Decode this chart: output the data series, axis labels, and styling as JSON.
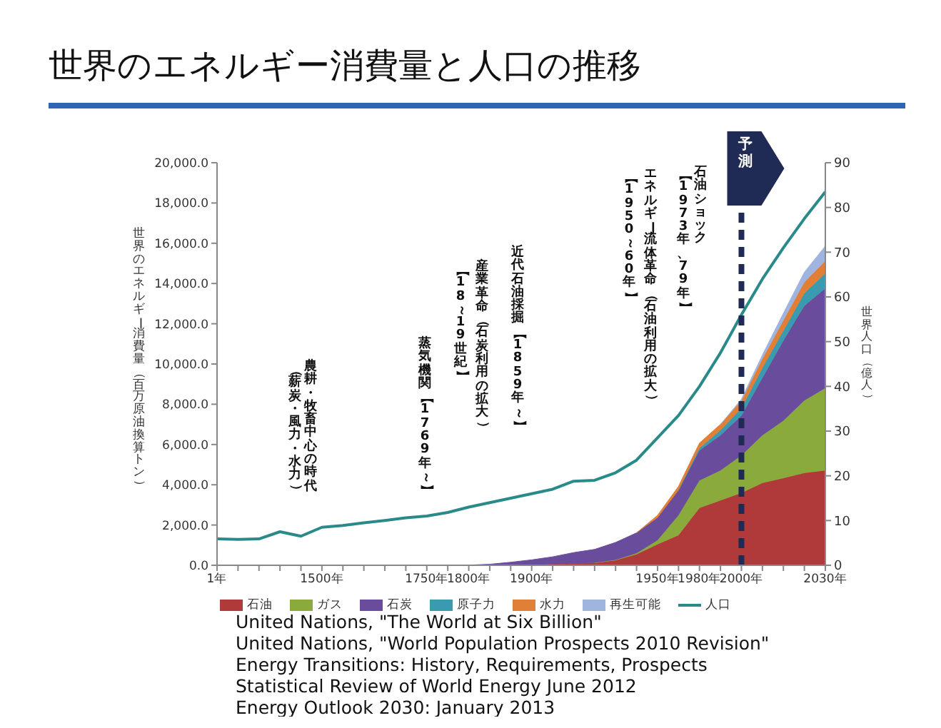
{
  "chart_data": {
    "type": "area",
    "stacked": true,
    "title": "世界のエネルギー消費量と人口の推移",
    "ylabel": "世界のエネルギー消費量（百万原油換算トン）",
    "y2label": "世界人口（億人）",
    "categories": [
      "1年",
      null,
      null,
      null,
      null,
      "1500年",
      null,
      null,
      null,
      null,
      "1750年",
      null,
      "1800年",
      null,
      null,
      "1900年",
      null,
      null,
      null,
      null,
      null,
      "1950年",
      null,
      "1980年",
      null,
      "2000年",
      null,
      null,
      null,
      "2030年"
    ],
    "series": [
      {
        "name": "石油",
        "color": "#b03a3a",
        "values": [
          null,
          null,
          null,
          null,
          null,
          null,
          null,
          null,
          null,
          null,
          null,
          null,
          null,
          null,
          null,
          20,
          50,
          80,
          120,
          245,
          540,
          1040,
          1490,
          2850,
          3220,
          3590,
          4090,
          4330,
          4580,
          4710
        ]
      },
      {
        "name": "ガス",
        "color": "#8aab3c",
        "values": [
          null,
          null,
          null,
          null,
          null,
          null,
          null,
          null,
          null,
          null,
          null,
          null,
          null,
          null,
          null,
          null,
          null,
          null,
          0,
          20,
          50,
          200,
          990,
          1360,
          1490,
          1860,
          2360,
          2850,
          3600,
          4090
        ]
      },
      {
        "name": "石炭",
        "color": "#6a4c9c",
        "values": [
          null,
          null,
          null,
          null,
          null,
          null,
          null,
          null,
          null,
          null,
          null,
          null,
          10,
          50,
          150,
          250,
          370,
          550,
          670,
          870,
          1020,
          1120,
          1240,
          1490,
          1740,
          1980,
          2850,
          3970,
          4710,
          4960
        ]
      },
      {
        "name": "原子力",
        "color": "#3a9ab0",
        "values": [
          null,
          null,
          null,
          null,
          null,
          null,
          null,
          null,
          null,
          null,
          null,
          null,
          null,
          null,
          null,
          null,
          null,
          null,
          null,
          null,
          null,
          null,
          0,
          120,
          250,
          370,
          500,
          500,
          620,
          740
        ]
      },
      {
        "name": "水力",
        "color": "#e07f35",
        "values": [
          null,
          null,
          null,
          null,
          null,
          null,
          null,
          null,
          null,
          null,
          null,
          null,
          null,
          null,
          null,
          null,
          null,
          null,
          null,
          null,
          0,
          120,
          200,
          250,
          300,
          370,
          450,
          500,
          550,
          620
        ]
      },
      {
        "name": "再生可能",
        "color": "#9fb4de",
        "values": [
          null,
          null,
          null,
          null,
          null,
          null,
          null,
          null,
          null,
          null,
          null,
          null,
          null,
          null,
          null,
          null,
          null,
          null,
          null,
          null,
          null,
          null,
          null,
          null,
          0,
          80,
          200,
          370,
          500,
          740
        ]
      },
      {
        "name": "人口",
        "type": "line",
        "axis": "y2",
        "color": "#2a8a8a",
        "values": [
          5.9,
          5.8,
          5.9,
          7.5,
          6.5,
          8.5,
          8.9,
          9.5,
          10,
          10.6,
          11,
          11.8,
          13,
          14,
          15,
          16,
          17,
          18.8,
          19,
          20.7,
          23.5,
          28.5,
          33.5,
          40,
          47.5,
          56,
          64,
          71,
          77.5,
          83.5
        ]
      }
    ],
    "ylim": [
      0,
      20000
    ],
    "yticks": [
      {
        "value": 0,
        "label": "0.0"
      },
      {
        "value": 2000,
        "label": "2,000.0"
      },
      {
        "value": 4000,
        "label": "4,000.0"
      },
      {
        "value": 6000,
        "label": "6,000.0"
      },
      {
        "value": 8000,
        "label": "8,000.0"
      },
      {
        "value": 10000,
        "label": "10,000.0"
      },
      {
        "value": 12000,
        "label": "12,000.0"
      },
      {
        "value": 14000,
        "label": "14,000.0"
      },
      {
        "value": 16000,
        "label": "16,000.0"
      },
      {
        "value": 18000,
        "label": "18,000.0"
      },
      {
        "value": 20000,
        "label": "20,000.0"
      }
    ],
    "y2lim": [
      0,
      90
    ],
    "y2ticks": [
      0,
      10,
      20,
      30,
      40,
      50,
      60,
      70,
      80,
      90
    ],
    "ref_lines": [
      {
        "axis": "x",
        "value": "2000年",
        "label": "予測",
        "color": "#1f2a55",
        "line_style": "dashed"
      }
    ],
    "grid": false,
    "legend": "bottom",
    "marker": "none",
    "annotations": [
      "農耕・牧畜中心の時代",
      "（薪炭・風力・水力）",
      "蒸気機関【1769年～】",
      "産業革命（石炭利用の拡大）",
      "【18～19世紀】",
      "近代石油採掘【1859年～】",
      "エネルギー流体革命（石油利用の拡大）",
      "【1950～60年】",
      "石油ショック",
      "【1973年、79年】",
      "United Nations, \"The World at Six Billion\"",
      "United Nations, \"World Population Prospects 2010 Revision\"",
      "Energy Transitions: History, Requirements, Prospects",
      "Statistical Review of World Energy June 2012",
      "Energy Outlook 2030: January 2013"
    ]
  }
}
